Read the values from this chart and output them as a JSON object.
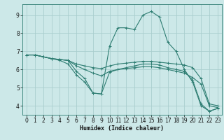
{
  "xlabel": "Humidex (Indice chaleur)",
  "bg_color": "#cce8e8",
  "line_color": "#2e7d72",
  "grid_color": "#aacece",
  "xlim": [
    -0.5,
    23.5
  ],
  "ylim": [
    3.5,
    9.6
  ],
  "xticks": [
    0,
    1,
    2,
    3,
    4,
    5,
    6,
    7,
    8,
    9,
    10,
    11,
    12,
    13,
    14,
    15,
    16,
    17,
    18,
    19,
    20,
    21,
    22,
    23
  ],
  "yticks": [
    4,
    5,
    6,
    7,
    8,
    9
  ],
  "lines": [
    {
      "x": [
        0,
        1,
        2,
        3,
        4,
        5,
        6,
        7,
        8,
        9,
        10,
        11,
        12,
        13,
        14,
        15,
        16,
        17,
        18,
        19,
        20,
        21,
        22,
        23
      ],
      "y": [
        6.8,
        6.8,
        6.7,
        6.6,
        6.5,
        6.3,
        5.7,
        5.3,
        4.7,
        4.65,
        7.3,
        8.3,
        8.3,
        8.2,
        9.0,
        9.2,
        8.9,
        7.5,
        7.0,
        6.0,
        5.3,
        4.0,
        3.7,
        3.85
      ]
    },
    {
      "x": [
        0,
        1,
        2,
        3,
        4,
        5,
        6,
        7,
        8,
        9,
        10,
        11,
        12,
        13,
        14,
        15,
        16,
        17,
        18,
        19,
        20,
        21,
        22,
        23
      ],
      "y": [
        6.8,
        6.8,
        6.7,
        6.6,
        6.55,
        6.5,
        6.3,
        6.2,
        6.1,
        6.05,
        6.2,
        6.3,
        6.35,
        6.4,
        6.45,
        6.45,
        6.4,
        6.35,
        6.3,
        6.25,
        6.1,
        5.5,
        4.1,
        4.0
      ]
    },
    {
      "x": [
        0,
        1,
        2,
        3,
        4,
        5,
        6,
        7,
        8,
        9,
        10,
        11,
        12,
        13,
        14,
        15,
        16,
        17,
        18,
        19,
        20,
        21,
        22,
        23
      ],
      "y": [
        6.8,
        6.8,
        6.7,
        6.6,
        6.55,
        6.5,
        6.2,
        6.0,
        5.8,
        5.65,
        5.9,
        6.0,
        6.05,
        6.1,
        6.15,
        6.15,
        6.1,
        6.0,
        5.9,
        5.8,
        5.55,
        5.2,
        4.0,
        3.9
      ]
    },
    {
      "x": [
        0,
        1,
        2,
        3,
        4,
        5,
        6,
        7,
        8,
        9,
        10,
        11,
        12,
        13,
        14,
        15,
        16,
        17,
        18,
        19,
        20,
        21,
        22,
        23
      ],
      "y": [
        6.8,
        6.8,
        6.7,
        6.6,
        6.55,
        6.5,
        5.9,
        5.5,
        4.7,
        4.65,
        5.85,
        6.0,
        6.1,
        6.2,
        6.3,
        6.3,
        6.25,
        6.1,
        6.0,
        5.9,
        5.4,
        4.1,
        3.7,
        3.85
      ]
    }
  ]
}
